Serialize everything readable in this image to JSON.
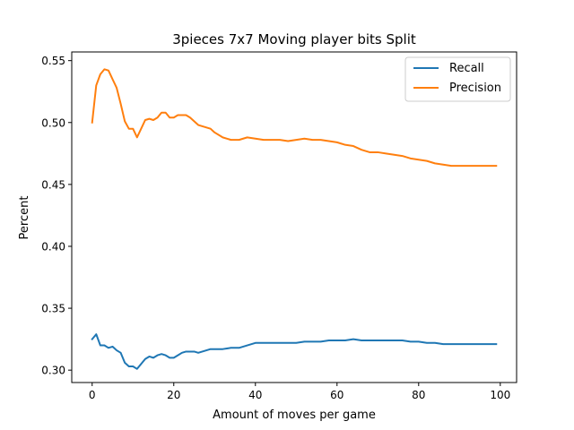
{
  "chart_data": {
    "type": "line",
    "title": "3pieces 7x7 Moving player bits Split",
    "xlabel": "Amount of moves per game",
    "ylabel": "Percent",
    "xlim": [
      -5,
      104
    ],
    "ylim": [
      0.29,
      0.557
    ],
    "xticks": [
      0,
      20,
      40,
      60,
      80,
      100
    ],
    "yticks": [
      0.3,
      0.35,
      0.4,
      0.45,
      0.5,
      0.55
    ],
    "xtick_labels": [
      "0",
      "20",
      "40",
      "60",
      "80",
      "100"
    ],
    "ytick_labels": [
      "0.30",
      "0.35",
      "0.40",
      "0.45",
      "0.50",
      "0.55"
    ],
    "grid": false,
    "legend_position": "top-right",
    "series": [
      {
        "name": "Recall",
        "color": "#1f77b4",
        "x": [
          0,
          1,
          2,
          3,
          4,
          5,
          6,
          7,
          8,
          9,
          10,
          11,
          12,
          13,
          14,
          15,
          16,
          17,
          18,
          19,
          20,
          21,
          22,
          23,
          24,
          25,
          26,
          27,
          28,
          29,
          30,
          32,
          34,
          36,
          38,
          40,
          42,
          44,
          46,
          48,
          50,
          52,
          54,
          56,
          58,
          60,
          62,
          64,
          66,
          68,
          70,
          72,
          74,
          76,
          78,
          80,
          82,
          84,
          86,
          88,
          90,
          92,
          94,
          96,
          98,
          99
        ],
        "y": [
          0.325,
          0.329,
          0.32,
          0.32,
          0.318,
          0.319,
          0.316,
          0.314,
          0.306,
          0.303,
          0.303,
          0.301,
          0.305,
          0.309,
          0.311,
          0.31,
          0.312,
          0.313,
          0.312,
          0.31,
          0.31,
          0.312,
          0.314,
          0.315,
          0.315,
          0.315,
          0.314,
          0.315,
          0.316,
          0.317,
          0.317,
          0.317,
          0.318,
          0.318,
          0.32,
          0.322,
          0.322,
          0.322,
          0.322,
          0.322,
          0.322,
          0.323,
          0.323,
          0.323,
          0.324,
          0.324,
          0.324,
          0.325,
          0.324,
          0.324,
          0.324,
          0.324,
          0.324,
          0.324,
          0.323,
          0.323,
          0.322,
          0.322,
          0.321,
          0.321,
          0.321,
          0.321,
          0.321,
          0.321,
          0.321,
          0.321
        ]
      },
      {
        "name": "Precision",
        "color": "#ff7f0e",
        "x": [
          0,
          1,
          2,
          3,
          4,
          5,
          6,
          7,
          8,
          9,
          10,
          11,
          12,
          13,
          14,
          15,
          16,
          17,
          18,
          19,
          20,
          21,
          22,
          23,
          24,
          25,
          26,
          27,
          28,
          29,
          30,
          32,
          34,
          36,
          38,
          40,
          42,
          44,
          46,
          48,
          50,
          52,
          54,
          56,
          58,
          60,
          62,
          64,
          66,
          68,
          70,
          72,
          74,
          76,
          78,
          80,
          82,
          84,
          86,
          88,
          90,
          92,
          94,
          96,
          98,
          99
        ],
        "y": [
          0.5,
          0.53,
          0.539,
          0.543,
          0.542,
          0.535,
          0.528,
          0.515,
          0.501,
          0.495,
          0.495,
          0.488,
          0.495,
          0.502,
          0.503,
          0.502,
          0.504,
          0.508,
          0.508,
          0.504,
          0.504,
          0.506,
          0.506,
          0.506,
          0.504,
          0.501,
          0.498,
          0.497,
          0.496,
          0.495,
          0.492,
          0.488,
          0.486,
          0.486,
          0.488,
          0.487,
          0.486,
          0.486,
          0.486,
          0.485,
          0.486,
          0.487,
          0.486,
          0.486,
          0.485,
          0.484,
          0.482,
          0.481,
          0.478,
          0.476,
          0.476,
          0.475,
          0.474,
          0.473,
          0.471,
          0.47,
          0.469,
          0.467,
          0.466,
          0.465,
          0.465,
          0.465,
          0.465,
          0.465,
          0.465,
          0.465
        ]
      }
    ]
  }
}
